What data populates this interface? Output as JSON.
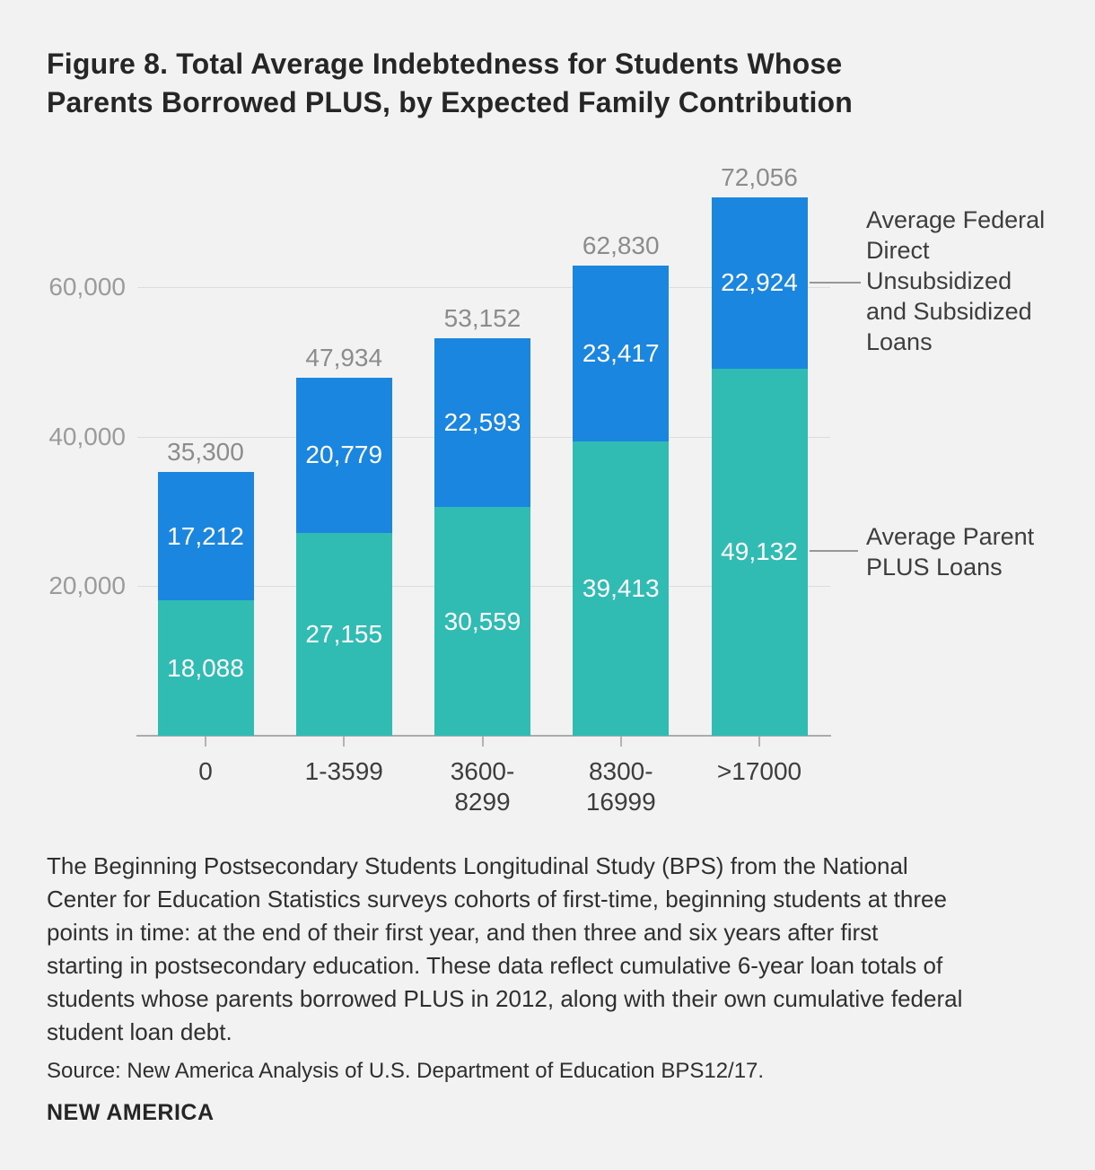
{
  "page": {
    "title": "Figure 8. Total Average Indebtedness for Students Whose\nParents Borrowed PLUS, by Expected Family Contribution",
    "note": "The Beginning Postsecondary Students Longitudinal Study (BPS) from the National\nCenter for Education Statistics surveys cohorts of first-time, beginning students at three\npoints in time: at the end of their first year, and then three and six years after first\nstarting in postsecondary education. These data reflect cumulative 6-year loan totals of\nstudents whose parents borrowed PLUS in 2012, along with their own cumulative federal\nstudent loan debt.",
    "source": "Source: New America Analysis of U.S. Department of Education BPS12/17.",
    "logo": "NEW AMERICA"
  },
  "colors": {
    "background": "#f2f2f2",
    "parent_plus_teal": "#30bcb3",
    "federal_blue": "#1a86df",
    "gridline": "#dcdcdc",
    "axis": "#ababab",
    "total_label": "#8c8c8c",
    "y_label": "#9b9b9b",
    "text_dark": "#3d3d3d"
  },
  "chart_data": {
    "type": "bar",
    "stacked": true,
    "title": "Figure 8. Total Average Indebtedness for Students Whose Parents Borrowed PLUS, by Expected Family Contribution",
    "xlabel": "Expected Family Contribution",
    "ylabel": "",
    "ylim": [
      0,
      78000
    ],
    "grid": true,
    "legend_position": "right-annotations",
    "categories": [
      "0",
      "1-3599",
      "3600-\n8299",
      "8300-\n16999",
      ">17000"
    ],
    "series": [
      {
        "name": "Average Parent PLUS Loans",
        "color": "#30bcb3",
        "values": [
          18088,
          27155,
          30559,
          39413,
          49132
        ],
        "labels": [
          "18,088",
          "27,155",
          "30,559",
          "39,413",
          "49,132"
        ]
      },
      {
        "name": "Average Federal Direct Unsubsidized and Subsidized Loans",
        "color": "#1a86df",
        "values": [
          17212,
          20779,
          22593,
          23417,
          22924
        ],
        "labels": [
          "17,212",
          "20,779",
          "22,593",
          "23,417",
          "22,924"
        ]
      }
    ],
    "totals": [
      35300,
      47934,
      53152,
      62830,
      72056
    ],
    "total_labels": [
      "35,300",
      "47,934",
      "53,152",
      "62,830",
      "72,056"
    ],
    "y_ticks": [
      {
        "value": 20000,
        "label": "20,000"
      },
      {
        "value": 40000,
        "label": "40,000"
      },
      {
        "value": 60000,
        "label": "60,000"
      }
    ],
    "annotations": [
      {
        "text": "Average Federal\nDirect\nUnsubsidized\nand Subsidized\nLoans",
        "series": "Average Federal Direct Unsubsidized and Subsidized Loans"
      },
      {
        "text": "Average Parent\nPLUS Loans",
        "series": "Average Parent PLUS Loans"
      }
    ]
  }
}
